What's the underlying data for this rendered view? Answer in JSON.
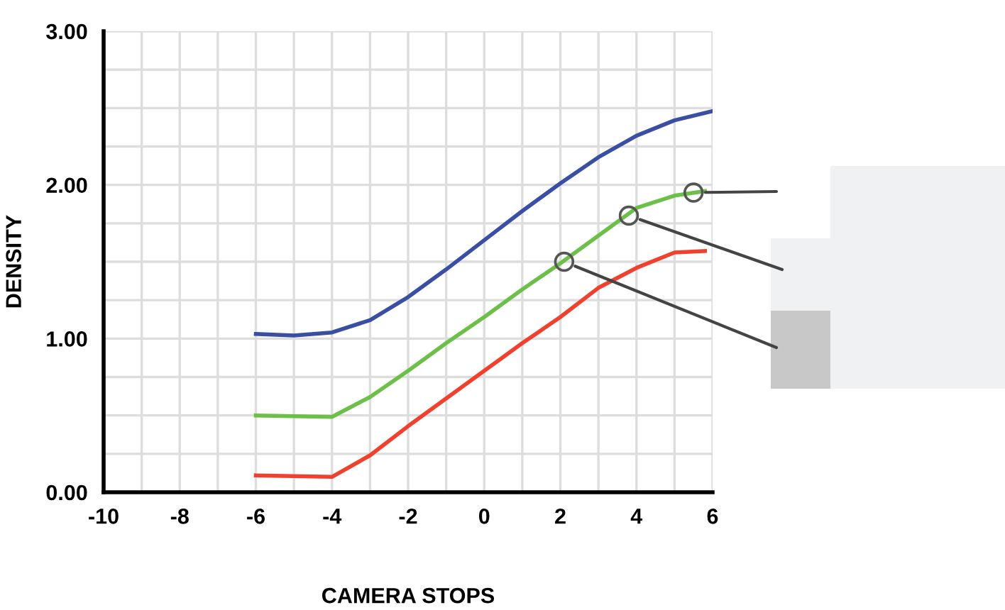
{
  "chart_data": {
    "type": "line",
    "xlabel": "CAMERA STOPS",
    "ylabel": "DENSITY",
    "xlim": [
      -10,
      6
    ],
    "ylim": [
      0,
      3
    ],
    "xticks": [
      -10,
      {
        "value": -9,
        "label": null
      },
      -8,
      {
        "value": -7,
        "label": null
      },
      -6,
      {
        "value": -5,
        "label": null
      },
      -4,
      {
        "value": -3,
        "label": null
      },
      -2,
      {
        "value": -1,
        "label": null
      },
      0,
      {
        "value": 1,
        "label": null
      },
      2,
      {
        "value": 3,
        "label": null
      },
      4,
      {
        "value": 5,
        "label": null
      },
      6
    ],
    "yticks": [
      {
        "value": 0,
        "label": "0.00"
      },
      {
        "value": 0.25,
        "label": null
      },
      {
        "value": 0.5,
        "label": null
      },
      {
        "value": 0.75,
        "label": null
      },
      {
        "value": 1,
        "label": "1.00"
      },
      {
        "value": 1.25,
        "label": null
      },
      {
        "value": 1.5,
        "label": null
      },
      {
        "value": 1.75,
        "label": null
      },
      {
        "value": 2,
        "label": "2.00"
      },
      {
        "value": 2.25,
        "label": null
      },
      {
        "value": 2.5,
        "label": null
      },
      {
        "value": 2.75,
        "label": null
      },
      {
        "value": 3,
        "label": "3.00"
      }
    ],
    "grid": true,
    "line_style": "solid",
    "series": [
      {
        "color": "#3a4fa3",
        "marker": "none",
        "x": [
          -6,
          -5,
          -4,
          -3,
          -2,
          -1,
          0,
          1,
          2,
          3,
          4,
          5,
          6
        ],
        "values": [
          1.03,
          1.02,
          1.04,
          1.12,
          1.27,
          1.45,
          1.64,
          1.83,
          2.01,
          2.18,
          2.32,
          2.42,
          2.48
        ]
      },
      {
        "color": "#6cc04a",
        "marker": "none",
        "x": [
          -6,
          -4,
          -3,
          -2,
          -1,
          0,
          1,
          2,
          3,
          4,
          5,
          5.8
        ],
        "values": [
          0.5,
          0.49,
          0.62,
          0.79,
          0.97,
          1.14,
          1.32,
          1.49,
          1.67,
          1.85,
          1.93,
          1.96
        ]
      },
      {
        "color": "#f0412f",
        "marker": "none",
        "x": [
          -6,
          -4,
          -3,
          -2,
          -1,
          0,
          1,
          2,
          3,
          4,
          5,
          5.8
        ],
        "values": [
          0.11,
          0.1,
          0.24,
          0.43,
          0.61,
          0.79,
          0.97,
          1.14,
          1.33,
          1.46,
          1.56,
          1.57
        ]
      },
      {
        "type": "scatter",
        "color": "#555555",
        "marker": "circle",
        "x": [
          2.1,
          3.8,
          5.5
        ],
        "values": [
          1.5,
          1.8,
          1.95
        ]
      }
    ]
  }
}
